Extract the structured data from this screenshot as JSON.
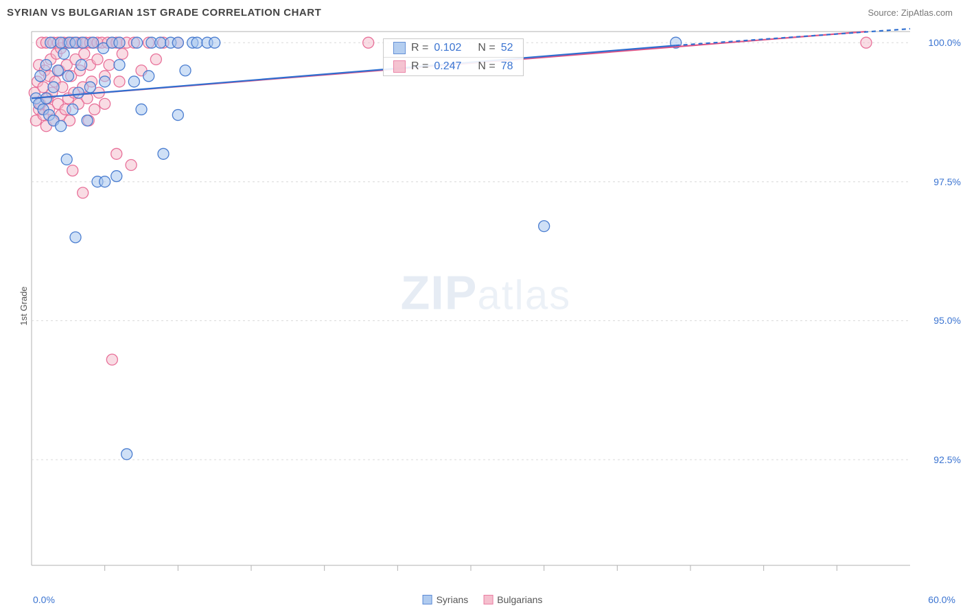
{
  "title": "SYRIAN VS BULGARIAN 1ST GRADE CORRELATION CHART",
  "source": "Source: ZipAtlas.com",
  "ylabel": "1st Grade",
  "watermark": {
    "part1": "ZIP",
    "part2": "atlas"
  },
  "chart": {
    "type": "scatter",
    "xlim": [
      0,
      60
    ],
    "ylim": [
      90.6,
      100.2
    ],
    "xlabels": {
      "min": "0.0%",
      "max": "60.0%"
    },
    "yticks": [
      {
        "v": 92.5,
        "label": "92.5%"
      },
      {
        "v": 95.0,
        "label": "95.0%"
      },
      {
        "v": 97.5,
        "label": "97.5%"
      },
      {
        "v": 100.0,
        "label": "100.0%"
      }
    ],
    "xticks_minor": [
      5,
      10,
      15,
      20,
      25,
      30,
      35,
      40,
      45,
      50,
      55
    ],
    "plot_bg": "#ffffff",
    "grid_color": "#d8d8d8",
    "axis_color": "#b0b0b0",
    "marker_radius": 8,
    "marker_stroke_width": 1.3,
    "line_width": 2.2,
    "series": {
      "syrians": {
        "label": "Syrians",
        "fill": "#a8c6ee",
        "stroke": "#4a7dd0",
        "fill_opacity": 0.55,
        "line_color": "#2f6fd0",
        "R": "0.102",
        "N": "52",
        "trend": {
          "x1": 0,
          "y1": 99.0,
          "x2": 44,
          "y2": 99.95,
          "dash_to_x": 60,
          "dash_to_y": 100.25
        },
        "points": [
          [
            0.3,
            99.0
          ],
          [
            0.5,
            98.9
          ],
          [
            0.6,
            99.4
          ],
          [
            0.8,
            98.8
          ],
          [
            1.0,
            99.0
          ],
          [
            1.0,
            99.6
          ],
          [
            1.2,
            98.7
          ],
          [
            1.3,
            100.0
          ],
          [
            1.5,
            98.6
          ],
          [
            1.5,
            99.2
          ],
          [
            1.8,
            99.5
          ],
          [
            2.0,
            100.0
          ],
          [
            2.0,
            98.5
          ],
          [
            2.2,
            99.8
          ],
          [
            2.4,
            97.9
          ],
          [
            2.5,
            99.4
          ],
          [
            2.6,
            100.0
          ],
          [
            2.8,
            98.8
          ],
          [
            3.0,
            100.0
          ],
          [
            3.0,
            96.5
          ],
          [
            3.2,
            99.1
          ],
          [
            3.4,
            99.6
          ],
          [
            3.5,
            100.0
          ],
          [
            3.8,
            98.6
          ],
          [
            4.0,
            99.2
          ],
          [
            4.2,
            100.0
          ],
          [
            4.5,
            97.5
          ],
          [
            4.9,
            99.9
          ],
          [
            5.0,
            99.3
          ],
          [
            5.5,
            100.0
          ],
          [
            5.8,
            97.6
          ],
          [
            6.0,
            99.6
          ],
          [
            6.0,
            100.0
          ],
          [
            6.5,
            92.6
          ],
          [
            7.0,
            99.3
          ],
          [
            7.2,
            100.0
          ],
          [
            7.5,
            98.8
          ],
          [
            8.0,
            99.4
          ],
          [
            8.2,
            100.0
          ],
          [
            8.8,
            100.0
          ],
          [
            9.0,
            98.0
          ],
          [
            9.5,
            100.0
          ],
          [
            10.0,
            98.7
          ],
          [
            10.0,
            100.0
          ],
          [
            10.5,
            99.5
          ],
          [
            11.0,
            100.0
          ],
          [
            11.3,
            100.0
          ],
          [
            12.0,
            100.0
          ],
          [
            12.5,
            100.0
          ],
          [
            35.0,
            96.7
          ],
          [
            44.0,
            100.0
          ],
          [
            5.0,
            97.5
          ]
        ]
      },
      "bulgarians": {
        "label": "Bulgarians",
        "fill": "#f4b9c9",
        "stroke": "#e87099",
        "fill_opacity": 0.5,
        "line_color": "#e25585",
        "R": "0.247",
        "N": "78",
        "trend": {
          "x1": 0,
          "y1": 99.0,
          "x2": 57,
          "y2": 100.2
        },
        "points": [
          [
            0.2,
            99.1
          ],
          [
            0.3,
            98.6
          ],
          [
            0.4,
            99.3
          ],
          [
            0.5,
            98.8
          ],
          [
            0.5,
            99.6
          ],
          [
            0.6,
            98.9
          ],
          [
            0.7,
            100.0
          ],
          [
            0.8,
            99.2
          ],
          [
            0.8,
            98.7
          ],
          [
            0.9,
            99.5
          ],
          [
            1.0,
            98.5
          ],
          [
            1.0,
            100.0
          ],
          [
            1.1,
            99.0
          ],
          [
            1.2,
            99.4
          ],
          [
            1.2,
            98.8
          ],
          [
            1.3,
            99.7
          ],
          [
            1.4,
            99.1
          ],
          [
            1.5,
            100.0
          ],
          [
            1.5,
            98.6
          ],
          [
            1.6,
            99.3
          ],
          [
            1.7,
            99.8
          ],
          [
            1.8,
            98.9
          ],
          [
            1.8,
            100.0
          ],
          [
            1.9,
            99.5
          ],
          [
            2.0,
            98.7
          ],
          [
            2.0,
            99.9
          ],
          [
            2.1,
            99.2
          ],
          [
            2.2,
            100.0
          ],
          [
            2.3,
            98.8
          ],
          [
            2.4,
            99.6
          ],
          [
            2.5,
            100.0
          ],
          [
            2.5,
            99.0
          ],
          [
            2.6,
            98.6
          ],
          [
            2.7,
            99.4
          ],
          [
            2.8,
            100.0
          ],
          [
            2.8,
            97.7
          ],
          [
            2.9,
            99.1
          ],
          [
            3.0,
            99.7
          ],
          [
            3.1,
            100.0
          ],
          [
            3.2,
            98.9
          ],
          [
            3.3,
            99.5
          ],
          [
            3.4,
            100.0
          ],
          [
            3.5,
            99.2
          ],
          [
            3.5,
            97.3
          ],
          [
            3.6,
            99.8
          ],
          [
            3.7,
            100.0
          ],
          [
            3.8,
            99.0
          ],
          [
            3.9,
            98.6
          ],
          [
            4.0,
            99.6
          ],
          [
            4.0,
            100.0
          ],
          [
            4.1,
            99.3
          ],
          [
            4.2,
            100.0
          ],
          [
            4.3,
            98.8
          ],
          [
            4.5,
            99.7
          ],
          [
            4.5,
            100.0
          ],
          [
            4.6,
            99.1
          ],
          [
            4.8,
            100.0
          ],
          [
            5.0,
            99.4
          ],
          [
            5.0,
            98.9
          ],
          [
            5.2,
            100.0
          ],
          [
            5.3,
            99.6
          ],
          [
            5.5,
            100.0
          ],
          [
            5.8,
            98.0
          ],
          [
            5.8,
            100.0
          ],
          [
            6.0,
            99.3
          ],
          [
            6.0,
            100.0
          ],
          [
            6.2,
            99.8
          ],
          [
            6.5,
            100.0
          ],
          [
            6.8,
            97.8
          ],
          [
            7.0,
            100.0
          ],
          [
            7.5,
            99.5
          ],
          [
            8.0,
            100.0
          ],
          [
            8.5,
            99.7
          ],
          [
            9.0,
            100.0
          ],
          [
            10.0,
            100.0
          ],
          [
            5.5,
            94.3
          ],
          [
            23.0,
            100.0
          ],
          [
            57.0,
            100.0
          ]
        ]
      }
    }
  },
  "stats_labels": {
    "R": "R =",
    "N": "N ="
  }
}
